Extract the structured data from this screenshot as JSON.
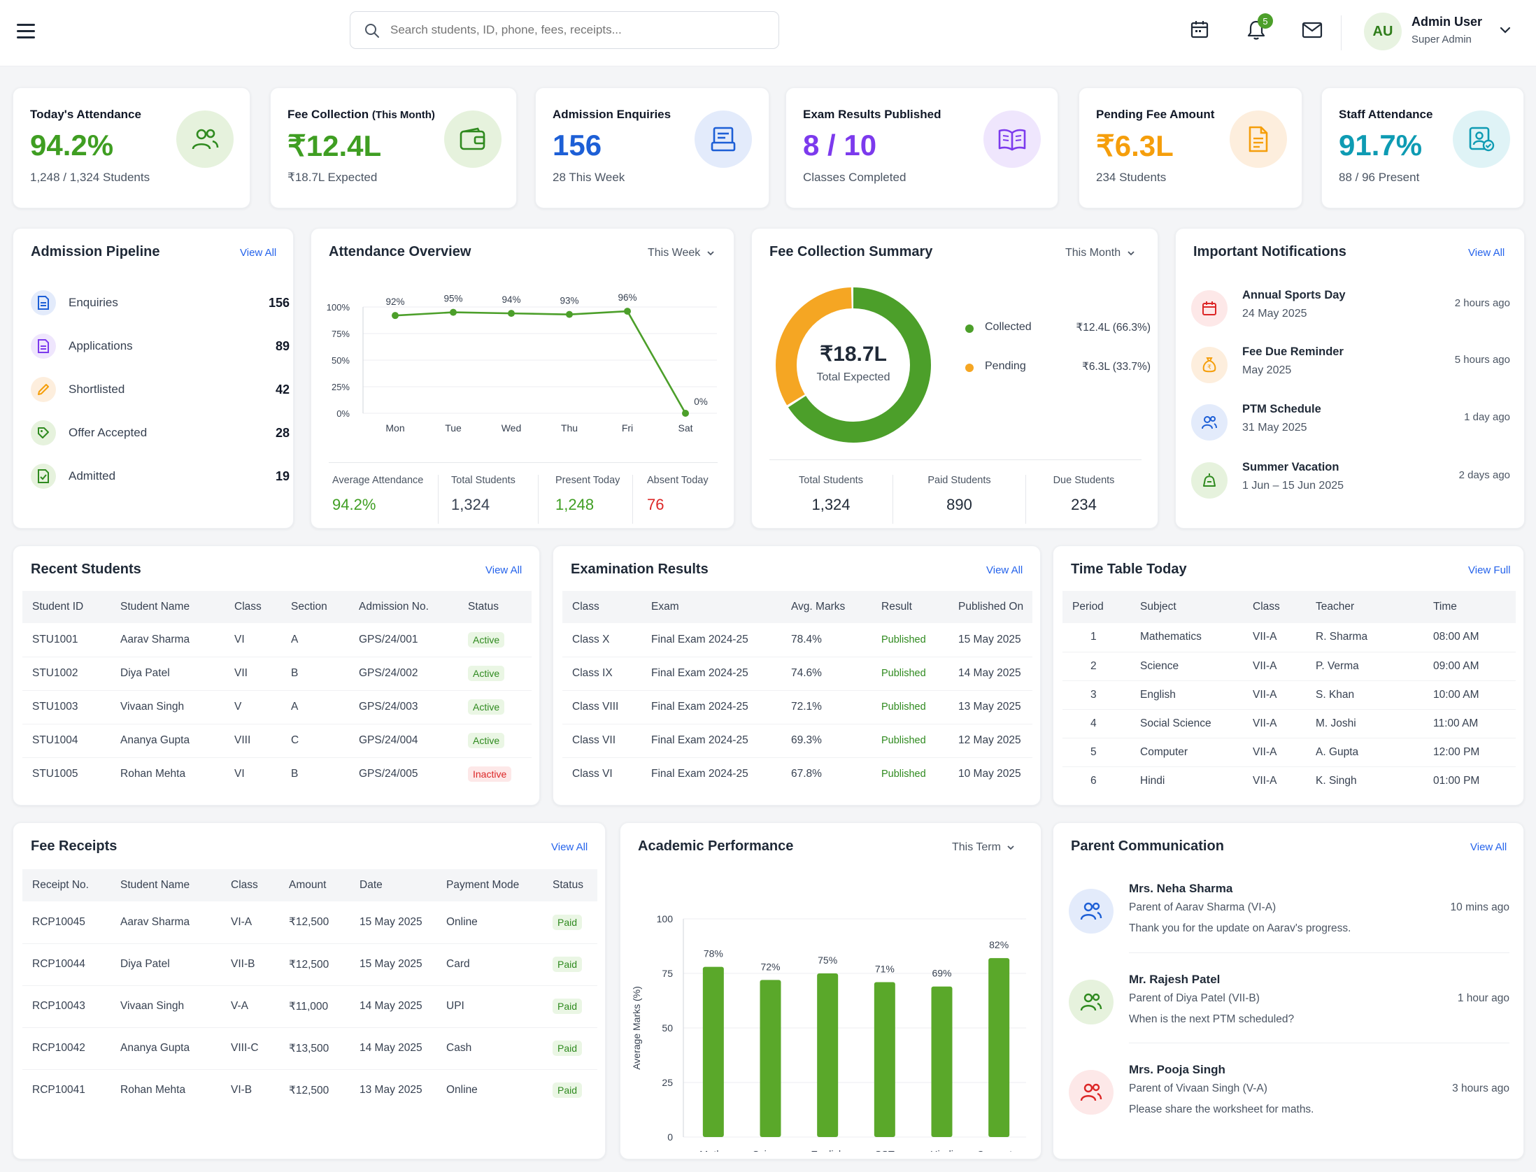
{
  "header": {
    "search_placeholder": "Search students, ID, phone, fees, receipts...",
    "notification_count": "5",
    "user": {
      "initials": "AU",
      "name": "Admin User",
      "role": "Super Admin"
    }
  },
  "colors": {
    "green": "#3f9e22",
    "blue": "#1d5fd6",
    "purple": "#7c3aed",
    "orange": "#f59e0b",
    "teal": "#0e9bb3",
    "red": "#dc2626"
  },
  "kpis": [
    {
      "label": "Today's Attendance",
      "value": "94.2%",
      "sub": "1,248 / 1,324 Students",
      "icon": "users-icon"
    },
    {
      "label": "Fee Collection",
      "label_small": "(This Month)",
      "value": "₹12.4L",
      "sub": "₹18.7L Expected",
      "icon": "wallet-icon"
    },
    {
      "label": "Admission Enquiries",
      "value": "156",
      "sub": "28 This Week",
      "icon": "form-icon"
    },
    {
      "label": "Exam Results Published",
      "value": "8 / 10",
      "sub": "Classes Completed",
      "icon": "book-icon"
    },
    {
      "label": "Pending Fee Amount",
      "value": "₹6.3L",
      "sub": "234 Students",
      "icon": "document-icon"
    },
    {
      "label": "Staff Attendance",
      "value": "91.7%",
      "sub": "88 / 96 Present",
      "icon": "staff-icon"
    }
  ],
  "pipeline": {
    "title": "Admission Pipeline",
    "view_all": "View All",
    "items": [
      {
        "label": "Enquiries",
        "count": "156"
      },
      {
        "label": "Applications",
        "count": "89"
      },
      {
        "label": "Shortlisted",
        "count": "42"
      },
      {
        "label": "Offer Accepted",
        "count": "28"
      },
      {
        "label": "Admitted",
        "count": "19"
      }
    ]
  },
  "attendance": {
    "title": "Attendance Overview",
    "period": "This Week",
    "stats": [
      {
        "label": "Average Attendance",
        "value": "94.2%"
      },
      {
        "label": "Total Students",
        "value": "1,324"
      },
      {
        "label": "Present Today",
        "value": "1,248"
      },
      {
        "label": "Absent Today",
        "value": "76"
      }
    ]
  },
  "fee_summary": {
    "title": "Fee Collection Summary",
    "period": "This Month",
    "center_value": "₹18.7L",
    "center_label": "Total Expected",
    "legend": [
      {
        "label": "Collected",
        "value": "₹12.4L (66.3%)"
      },
      {
        "label": "Pending",
        "value": "₹6.3L (33.7%)"
      }
    ],
    "stats": [
      {
        "label": "Total Students",
        "value": "1,324"
      },
      {
        "label": "Paid Students",
        "value": "890"
      },
      {
        "label": "Due Students",
        "value": "234"
      }
    ]
  },
  "notifications": {
    "title": "Important Notifications",
    "view_all": "View All",
    "items": [
      {
        "title": "Annual Sports Day",
        "date": "24 May 2025",
        "time": "2 hours ago"
      },
      {
        "title": "Fee Due Reminder",
        "date": "May 2025",
        "time": "5 hours ago"
      },
      {
        "title": "PTM Schedule",
        "date": "31 May 2025",
        "time": "1 day ago"
      },
      {
        "title": "Summer Vacation",
        "date": "1 Jun – 15 Jun 2025",
        "time": "2 days ago"
      }
    ]
  },
  "recent_students": {
    "title": "Recent Students",
    "view_all": "View All",
    "columns": [
      "Student ID",
      "Student Name",
      "Class",
      "Section",
      "Admission No.",
      "Status"
    ],
    "rows": [
      [
        "STU1001",
        "Aarav Sharma",
        "VI",
        "A",
        "GPS/24/001",
        "Active"
      ],
      [
        "STU1002",
        "Diya Patel",
        "VII",
        "B",
        "GPS/24/002",
        "Active"
      ],
      [
        "STU1003",
        "Vivaan Singh",
        "V",
        "A",
        "GPS/24/003",
        "Active"
      ],
      [
        "STU1004",
        "Ananya Gupta",
        "VIII",
        "C",
        "GPS/24/004",
        "Active"
      ],
      [
        "STU1005",
        "Rohan Mehta",
        "VI",
        "B",
        "GPS/24/005",
        "Inactive"
      ]
    ]
  },
  "exam_results": {
    "title": "Examination Results",
    "view_all": "View All",
    "columns": [
      "Class",
      "Exam",
      "Avg. Marks",
      "Result",
      "Published On"
    ],
    "rows": [
      [
        "Class X",
        "Final Exam 2024-25",
        "78.4%",
        "Published",
        "15 May 2025"
      ],
      [
        "Class IX",
        "Final Exam 2024-25",
        "74.6%",
        "Published",
        "14 May 2025"
      ],
      [
        "Class VIII",
        "Final Exam 2024-25",
        "72.1%",
        "Published",
        "13 May 2025"
      ],
      [
        "Class VII",
        "Final Exam 2024-25",
        "69.3%",
        "Published",
        "12 May 2025"
      ],
      [
        "Class VI",
        "Final Exam 2024-25",
        "67.8%",
        "Published",
        "10 May 2025"
      ]
    ]
  },
  "timetable": {
    "title": "Time Table Today",
    "view_all": "View Full",
    "columns": [
      "Period",
      "Subject",
      "Class",
      "Teacher",
      "Time"
    ],
    "rows": [
      [
        "1",
        "Mathematics",
        "VII-A",
        "R. Sharma",
        "08:00 AM"
      ],
      [
        "2",
        "Science",
        "VII-A",
        "P. Verma",
        "09:00 AM"
      ],
      [
        "3",
        "English",
        "VII-A",
        "S. Khan",
        "10:00 AM"
      ],
      [
        "4",
        "Social Science",
        "VII-A",
        "M. Joshi",
        "11:00 AM"
      ],
      [
        "5",
        "Computer",
        "VII-A",
        "A. Gupta",
        "12:00 PM"
      ],
      [
        "6",
        "Hindi",
        "VII-A",
        "K. Singh",
        "01:00 PM"
      ]
    ]
  },
  "fee_receipts": {
    "title": "Fee Receipts",
    "view_all": "View All",
    "columns": [
      "Receipt No.",
      "Student Name",
      "Class",
      "Amount",
      "Date",
      "Payment Mode",
      "Status"
    ],
    "rows": [
      [
        "RCP10045",
        "Aarav Sharma",
        "VI-A",
        "₹12,500",
        "15 May 2025",
        "Online",
        "Paid"
      ],
      [
        "RCP10044",
        "Diya Patel",
        "VII-B",
        "₹12,500",
        "15 May 2025",
        "Card",
        "Paid"
      ],
      [
        "RCP10043",
        "Vivaan Singh",
        "V-A",
        "₹11,000",
        "14 May 2025",
        "UPI",
        "Paid"
      ],
      [
        "RCP10042",
        "Ananya Gupta",
        "VIII-C",
        "₹13,500",
        "14 May 2025",
        "Cash",
        "Paid"
      ],
      [
        "RCP10041",
        "Rohan Mehta",
        "VI-B",
        "₹12,500",
        "13 May 2025",
        "Online",
        "Paid"
      ]
    ]
  },
  "academic": {
    "title": "Academic Performance",
    "period": "This Term"
  },
  "parent_comm": {
    "title": "Parent Communication",
    "view_all": "View All",
    "items": [
      {
        "name": "Mrs. Neha Sharma",
        "parent_of": "Parent of Aarav Sharma (VI-A)",
        "message": "Thank you for the update on Aarav's progress.",
        "time": "10 mins ago"
      },
      {
        "name": "Mr. Rajesh Patel",
        "parent_of": "Parent of Diya Patel (VII-B)",
        "message": "When is the next PTM scheduled?",
        "time": "1 hour ago"
      },
      {
        "name": "Mrs. Pooja Singh",
        "parent_of": "Parent of Vivaan Singh (V-A)",
        "message": "Please share the worksheet for maths.",
        "time": "3 hours ago"
      }
    ]
  },
  "chart_data": [
    {
      "type": "line",
      "categories": [
        "Mon",
        "Tue",
        "Wed",
        "Thu",
        "Fri",
        "Sat"
      ],
      "values": [
        92,
        95,
        94,
        93,
        96,
        0
      ],
      "data_labels": [
        "92%",
        "95%",
        "94%",
        "93%",
        "96%",
        "0%"
      ],
      "yticks": [
        "0%",
        "25%",
        "50%",
        "75%",
        "100%"
      ],
      "ylim": [
        0,
        100
      ],
      "grid": true,
      "color": "#4c9f2a"
    },
    {
      "type": "pie",
      "categories": [
        "Collected",
        "Pending"
      ],
      "values": [
        66.3,
        33.7
      ],
      "colors": [
        "#4c9f2a",
        "#f5a623"
      ]
    },
    {
      "type": "bar",
      "categories": [
        "Maths",
        "Science",
        "English",
        "SST",
        "Hindi",
        "Computer"
      ],
      "values": [
        78,
        72,
        75,
        71,
        69,
        82
      ],
      "data_labels": [
        "78%",
        "72%",
        "75%",
        "71%",
        "69%",
        "82%"
      ],
      "ylabel": "Average Marks (%)",
      "yticks": [
        "0",
        "25",
        "50",
        "75",
        "100"
      ],
      "ylim": [
        0,
        100
      ],
      "grid": true,
      "color": "#5aa82a"
    }
  ]
}
